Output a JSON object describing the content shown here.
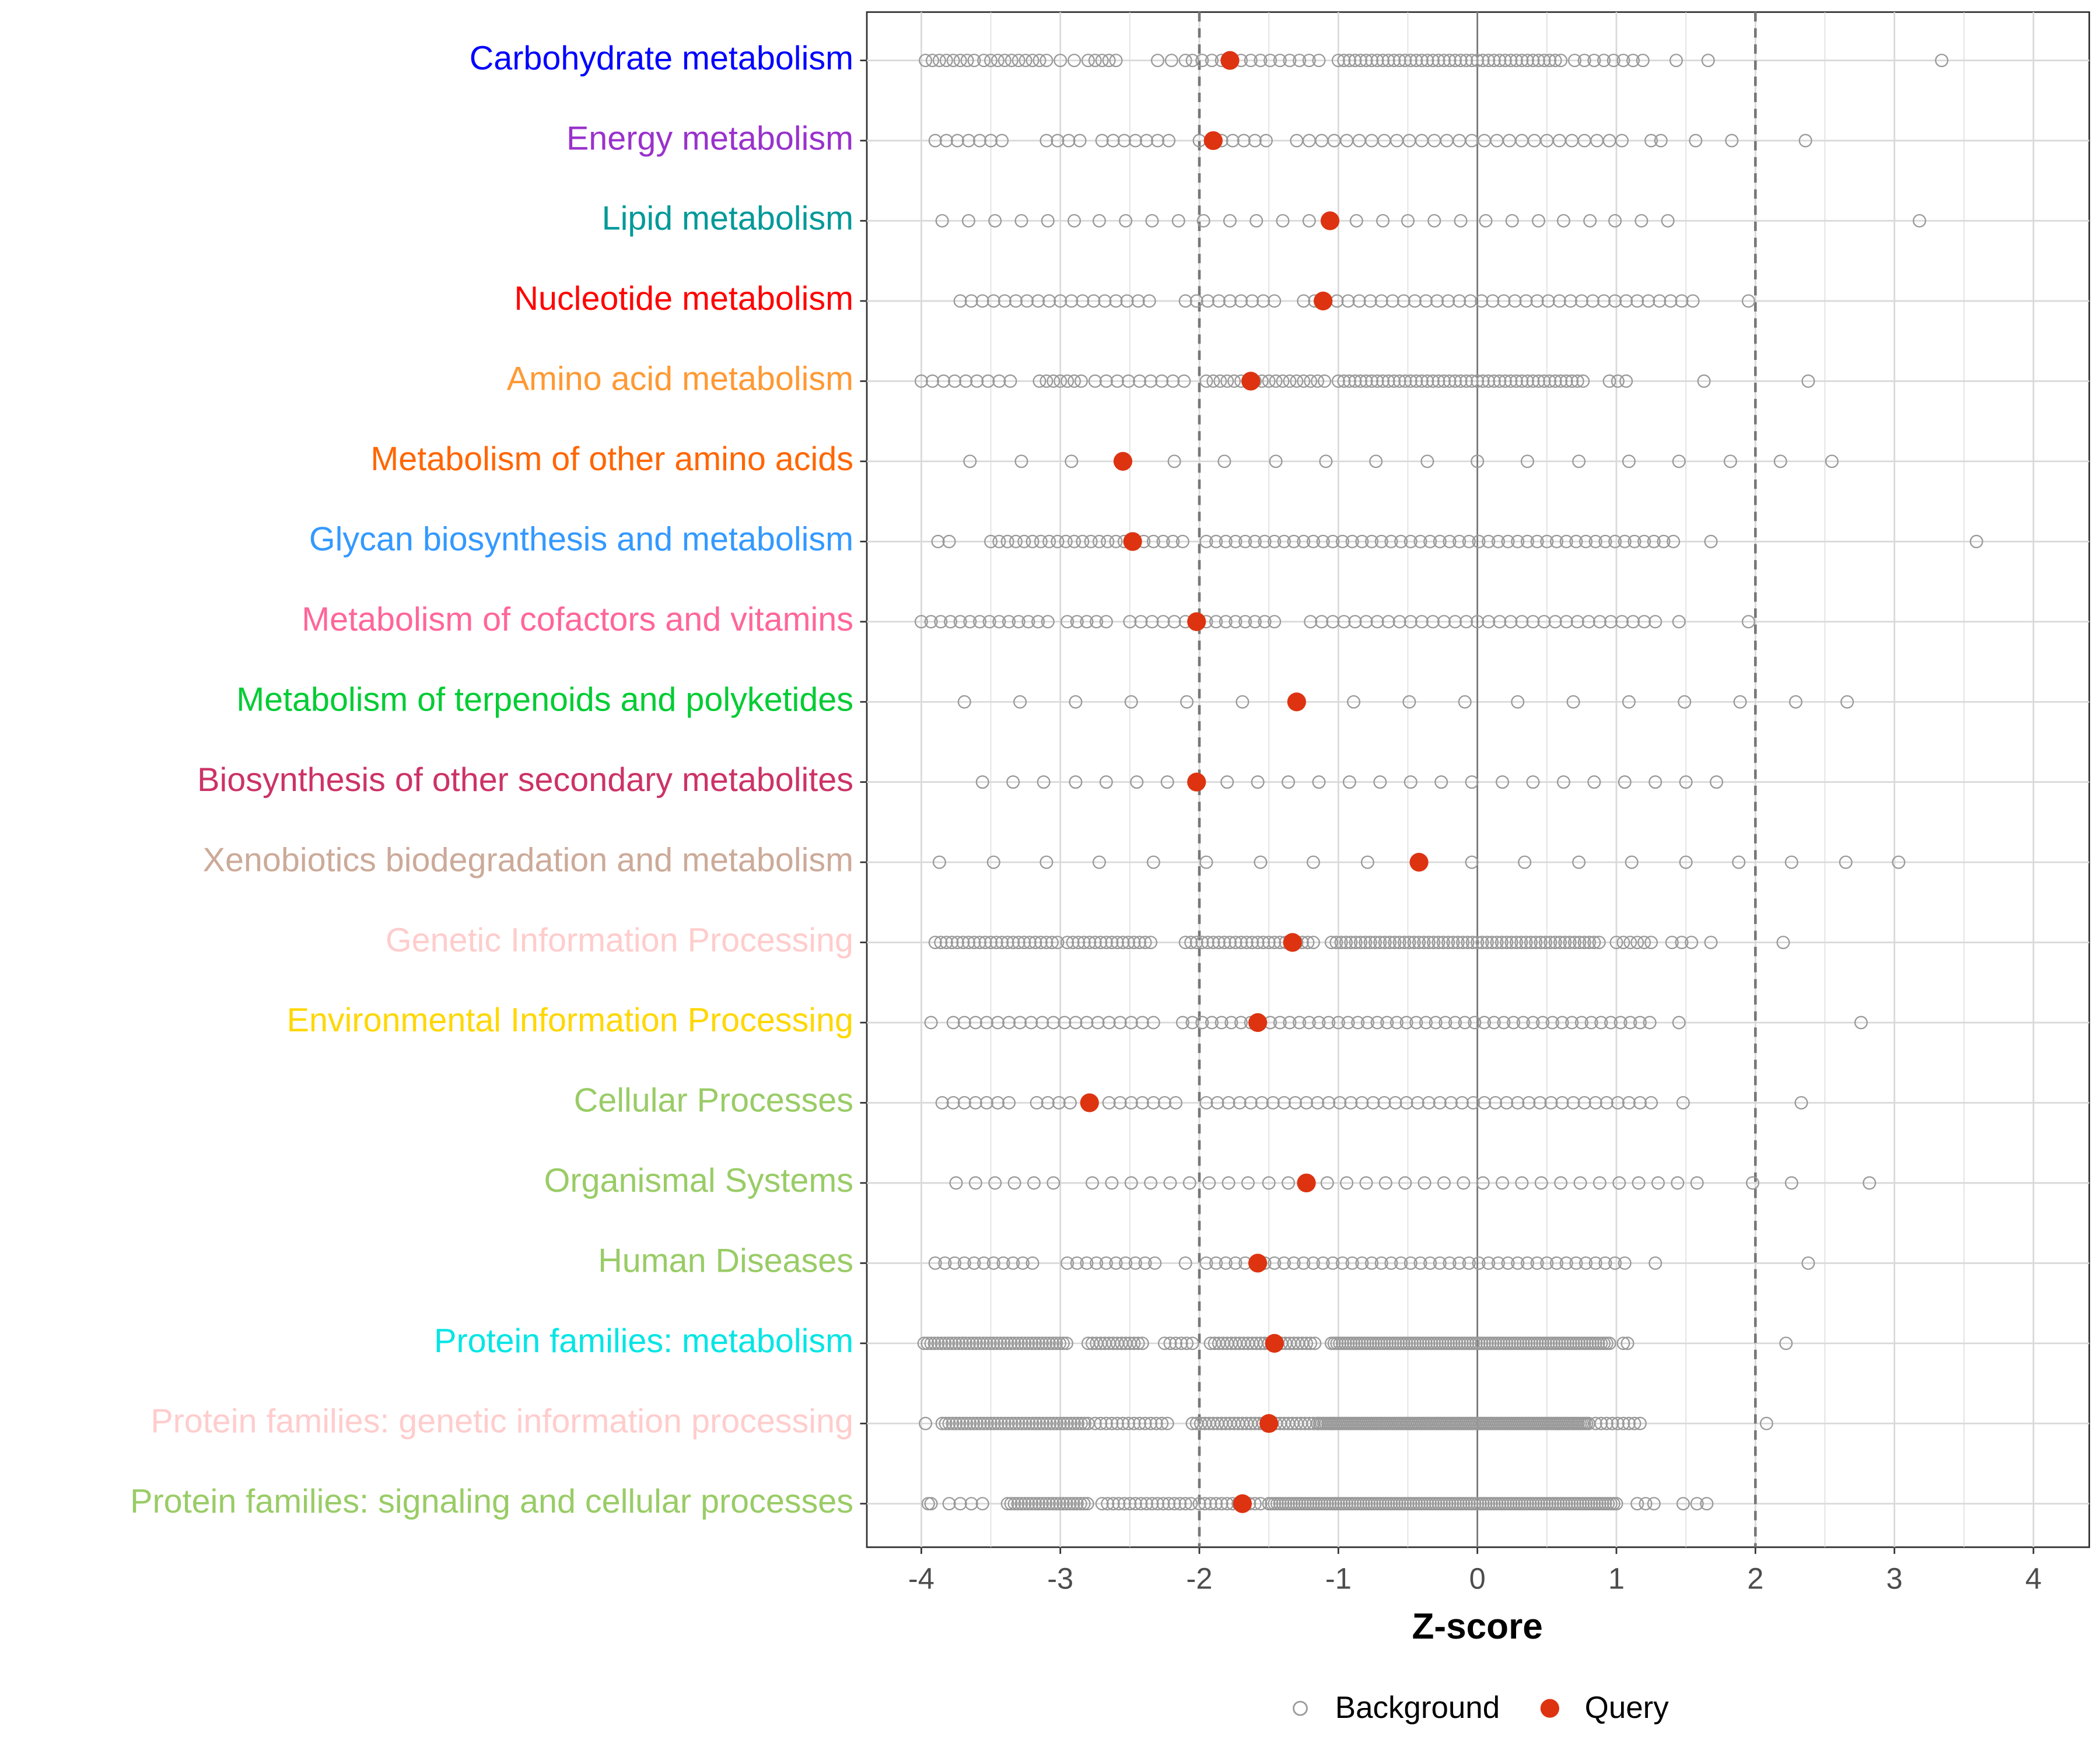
{
  "chart_data": {
    "type": "scatter",
    "title": "",
    "xlabel": "Z-score",
    "ylabel": "",
    "xlim": [
      -4.4,
      4.4
    ],
    "xticks": [
      "-4",
      "-3",
      "-2",
      "-1",
      "0",
      "1",
      "2",
      "3",
      "4"
    ],
    "xtick_values": [
      -4,
      -3,
      -2,
      -1,
      0,
      1,
      2,
      3,
      4
    ],
    "reference_lines": {
      "solid": 0,
      "dashed": [
        -2,
        2
      ]
    },
    "grid": true,
    "legend": {
      "position": "bottom",
      "entries": [
        "Background",
        "Query"
      ]
    },
    "colors": {
      "background_point": "#999999",
      "query_point": "#DD3311",
      "ref_line": "#777777",
      "grid": "#D9D9D9"
    },
    "categories": [
      {
        "label": "Carbohydrate metabolism",
        "color": "#0000FF",
        "query": -1.78,
        "background": {
          "segments": [
            [
              -3.97,
              -3.6,
              0.05
            ],
            [
              -3.55,
              -3.1,
              0.05
            ],
            [
              -2.8,
              -2.6,
              0.05
            ],
            [
              -2.3,
              -2.1,
              0.1
            ],
            [
              -2.05,
              -1.1,
              0.07
            ],
            [
              -1.0,
              0.6,
              0.04
            ],
            [
              0.7,
              1.2,
              0.07
            ]
          ],
          "points": [
            -3.0,
            -2.9,
            1.43,
            1.66,
            3.34
          ]
        }
      },
      {
        "label": "Energy metabolism",
        "color": "#9932CC",
        "query": -1.9,
        "background": {
          "segments": [
            [
              -3.9,
              -3.4,
              0.08
            ],
            [
              -3.1,
              -2.85,
              0.08
            ],
            [
              -2.7,
              -2.2,
              0.08
            ],
            [
              -2.0,
              -1.5,
              0.08
            ],
            [
              -1.3,
              1.05,
              0.09
            ]
          ],
          "points": [
            1.25,
            1.32,
            1.57,
            1.83,
            2.36
          ]
        }
      },
      {
        "label": "Lipid metabolism",
        "color": "#009999",
        "query": -1.06,
        "background": {
          "segments": [],
          "points": [
            -3.85,
            -3.66,
            -3.47,
            -3.28,
            -3.09,
            -2.9,
            -2.72,
            -2.53,
            -2.34,
            -2.15,
            -1.97,
            -1.78,
            -1.59,
            -1.4,
            -1.21,
            -0.87,
            -0.68,
            -0.5,
            -0.31,
            -0.12,
            0.06,
            0.25,
            0.44,
            0.62,
            0.81,
            0.99,
            1.18,
            1.37,
            3.18
          ]
        }
      },
      {
        "label": "Nucleotide metabolism",
        "color": "#FF0000",
        "query": -1.11,
        "background": {
          "segments": [
            [
              -3.72,
              -2.35,
              0.08
            ],
            [
              -2.1,
              -1.45,
              0.08
            ],
            [
              -1.25,
              1.6,
              0.08
            ]
          ],
          "points": [
            1.95
          ]
        }
      },
      {
        "label": "Amino acid metabolism",
        "color": "#FF9933",
        "query": -1.63,
        "background": {
          "segments": [
            [
              -4.0,
              -3.35,
              0.08
            ],
            [
              -3.15,
              -2.85,
              0.05
            ],
            [
              -2.75,
              -2.05,
              0.08
            ],
            [
              -1.95,
              -1.1,
              0.05
            ],
            [
              -1.0,
              0.78,
              0.04
            ],
            [
              0.95,
              1.12,
              0.06
            ]
          ],
          "points": [
            1.63,
            2.38
          ]
        }
      },
      {
        "label": "Metabolism of other amino acids",
        "color": "#FF6600",
        "query": -2.55,
        "background": {
          "segments": [],
          "points": [
            -3.65,
            -3.28,
            -2.92,
            -2.18,
            -1.82,
            -1.45,
            -1.09,
            -0.73,
            -0.36,
            0,
            0.36,
            0.73,
            1.09,
            1.45,
            1.82,
            2.18,
            2.55
          ]
        }
      },
      {
        "label": "Glycan biosynthesis and metabolism",
        "color": "#3399FF",
        "query": -2.48,
        "background": {
          "segments": [
            [
              -3.5,
              -2.5,
              0.06
            ],
            [
              -2.4,
              -2.1,
              0.07
            ],
            [
              -1.95,
              1.45,
              0.07
            ]
          ],
          "points": [
            -3.88,
            -3.8,
            1.68,
            3.59
          ]
        }
      },
      {
        "label": "Metabolism of cofactors and vitamins",
        "color": "#FF6699",
        "query": -2.02,
        "background": {
          "segments": [
            [
              -4.0,
              -3.07,
              0.07
            ],
            [
              -2.95,
              -2.65,
              0.07
            ],
            [
              -2.5,
              -2.1,
              0.08
            ],
            [
              -1.95,
              -1.45,
              0.07
            ],
            [
              -1.2,
              1.3,
              0.08
            ]
          ],
          "points": [
            1.45,
            1.95
          ]
        }
      },
      {
        "label": "Metabolism of terpenoids and polyketides",
        "color": "#00CC33",
        "query": -1.3,
        "background": {
          "segments": [],
          "points": [
            -3.69,
            -3.29,
            -2.89,
            -2.49,
            -2.09,
            -1.69,
            -0.89,
            -0.49,
            -0.09,
            0.29,
            0.69,
            1.09,
            1.49,
            1.89,
            2.29,
            2.66
          ]
        }
      },
      {
        "label": "Biosynthesis of other secondary metabolites",
        "color": "#CC3366",
        "query": -2.02,
        "background": {
          "segments": [],
          "points": [
            -3.56,
            -3.34,
            -3.12,
            -2.89,
            -2.67,
            -2.45,
            -2.23,
            -1.8,
            -1.58,
            -1.36,
            -1.14,
            -0.92,
            -0.7,
            -0.48,
            -0.26,
            -0.04,
            0.18,
            0.4,
            0.62,
            0.84,
            1.06,
            1.28,
            1.5,
            1.72
          ]
        }
      },
      {
        "label": "Xenobiotics biodegradation and metabolism",
        "color": "#CCAA99",
        "query": -0.42,
        "background": {
          "segments": [],
          "points": [
            -3.87,
            -3.48,
            -3.1,
            -2.72,
            -2.33,
            -1.95,
            -1.56,
            -1.18,
            -0.79,
            -0.04,
            0.34,
            0.73,
            1.11,
            1.5,
            1.88,
            2.26,
            2.65,
            3.03
          ]
        }
      },
      {
        "label": "Genetic Information Processing",
        "color": "#FFCCCC",
        "query": -1.33,
        "background": {
          "segments": [
            [
              -3.9,
              -3.0,
              0.04
            ],
            [
              -2.95,
              -2.35,
              0.04
            ],
            [
              -2.1,
              -1.15,
              0.04
            ],
            [
              -1.05,
              0.9,
              0.035
            ],
            [
              1.0,
              1.25,
              0.05
            ],
            [
              1.4,
              1.55,
              0.07
            ]
          ],
          "points": [
            1.68,
            2.2
          ]
        }
      },
      {
        "label": "Environmental Information Processing",
        "color": "#FFD700",
        "query": -1.58,
        "background": {
          "segments": [
            [
              -3.77,
              -2.3,
              0.08
            ],
            [
              -2.12,
              1.3,
              0.07
            ]
          ],
          "points": [
            -3.93,
            1.45,
            2.76
          ]
        }
      },
      {
        "label": "Cellular Processes",
        "color": "#99CC66",
        "query": -2.79,
        "background": {
          "segments": [
            [
              -3.85,
              -3.35,
              0.08
            ],
            [
              -3.17,
              -2.9,
              0.08
            ],
            [
              -2.65,
              -2.1,
              0.08
            ],
            [
              -1.95,
              1.3,
              0.08
            ]
          ],
          "points": [
            1.48,
            2.33
          ]
        }
      },
      {
        "label": "Organismal Systems",
        "color": "#99CC66",
        "query": -1.23,
        "background": {
          "segments": [
            [
              -3.75,
              -3.05,
              0.14
            ],
            [
              -2.77,
              -1.65,
              0.14
            ],
            [
              -1.5,
              1.7,
              0.14
            ]
          ],
          "points": [
            1.98,
            2.26,
            2.82
          ]
        }
      },
      {
        "label": "Human Diseases",
        "color": "#99CC66",
        "query": -1.58,
        "background": {
          "segments": [
            [
              -3.9,
              -3.15,
              0.07
            ],
            [
              -2.95,
              -2.3,
              0.07
            ],
            [
              -1.95,
              1.1,
              0.07
            ]
          ],
          "points": [
            -2.1,
            1.28,
            2.38
          ]
        }
      },
      {
        "label": "Protein families: metabolism",
        "color": "#00E5E5",
        "query": -1.46,
        "background": {
          "segments": [
            [
              -3.98,
              -2.95,
              0.025
            ],
            [
              -2.8,
              -2.4,
              0.03
            ],
            [
              -2.25,
              -2.05,
              0.04
            ],
            [
              -1.92,
              -1.15,
              0.03
            ],
            [
              -1.05,
              0.95,
              0.02
            ],
            [
              1.05,
              1.1,
              0.03
            ]
          ],
          "points": [
            2.22
          ]
        }
      },
      {
        "label": "Protein families: genetic information processing",
        "color": "#FFCCCC",
        "query": -1.5,
        "background": {
          "segments": [
            [
              -3.85,
              -2.8,
              0.025
            ],
            [
              -2.75,
              -2.2,
              0.04
            ],
            [
              -2.05,
              -1.15,
              0.03
            ],
            [
              -1.15,
              0.8,
              0.015
            ],
            [
              0.85,
              1.2,
              0.04
            ]
          ],
          "points": [
            -3.97,
            2.08
          ]
        }
      },
      {
        "label": "Protein families: signaling and cellular processes",
        "color": "#99CC66",
        "query": -1.69,
        "background": {
          "segments": [
            [
              -3.95,
              -3.93,
              0.02
            ],
            [
              -3.8,
              -3.55,
              0.08
            ],
            [
              -3.38,
              -2.8,
              0.025
            ],
            [
              -2.7,
              -2.05,
              0.04
            ],
            [
              -2.0,
              -1.55,
              0.04
            ],
            [
              -1.5,
              1.0,
              0.02
            ],
            [
              1.15,
              1.27,
              0.06
            ]
          ],
          "points": [
            1.48,
            1.58,
            1.65
          ]
        }
      }
    ]
  }
}
